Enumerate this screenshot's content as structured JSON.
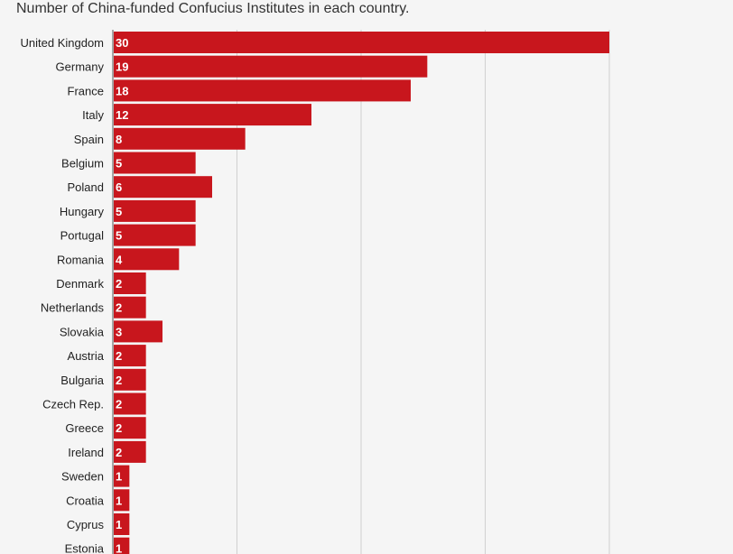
{
  "chart_data": {
    "type": "bar",
    "orientation": "horizontal",
    "title": "Number of China-funded Confucius Institutes in each country.",
    "categories": [
      "United Kingdom",
      "Germany",
      "France",
      "Italy",
      "Spain",
      "Belgium",
      "Poland",
      "Hungary",
      "Portugal",
      "Romania",
      "Denmark",
      "Netherlands",
      "Slovakia",
      "Austria",
      "Bulgaria",
      "Czech Rep.",
      "Greece",
      "Ireland",
      "Sweden",
      "Croatia",
      "Cyprus",
      "Estonia"
    ],
    "values": [
      30,
      19,
      18,
      12,
      8,
      5,
      6,
      5,
      5,
      4,
      2,
      2,
      3,
      2,
      2,
      2,
      2,
      2,
      1,
      1,
      1,
      1
    ],
    "xlim": [
      0,
      30
    ],
    "grid": true,
    "bar_color": "#c8161d",
    "gridline_color": "#d0d0d0"
  }
}
